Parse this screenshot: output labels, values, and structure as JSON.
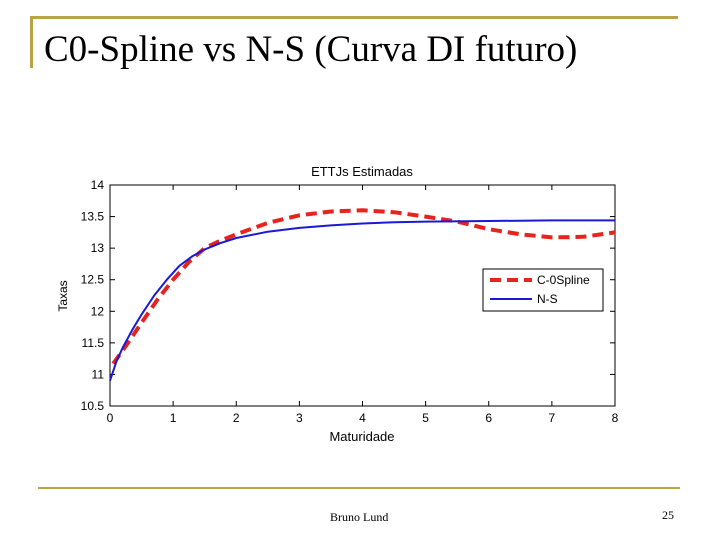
{
  "slide": {
    "title": "C0-Spline vs N-S (Curva DI futuro)",
    "author": "Bruno Lund",
    "page_number": "25",
    "accent_color": "#b8a447"
  },
  "chart_data": {
    "type": "line",
    "title": "ETTJs Estimadas",
    "xlabel": "Maturidade",
    "ylabel": "Taxas",
    "xlim": [
      0,
      8
    ],
    "ylim": [
      10.5,
      14
    ],
    "x_ticks": [
      "0",
      "1",
      "2",
      "3",
      "4",
      "5",
      "6",
      "7",
      "8"
    ],
    "y_ticks": [
      "10.5",
      "11",
      "11.5",
      "12",
      "12.5",
      "13",
      "13.5",
      "14"
    ],
    "grid": false,
    "legend_position": "right",
    "series": [
      {
        "name": "C-0Spline",
        "color": "#e8221c",
        "style": "dashed",
        "points": [
          [
            0.05,
            11.17
          ],
          [
            0.25,
            11.45
          ],
          [
            0.5,
            11.82
          ],
          [
            0.75,
            12.18
          ],
          [
            1.0,
            12.5
          ],
          [
            1.25,
            12.78
          ],
          [
            1.5,
            13.0
          ],
          [
            1.75,
            13.12
          ],
          [
            2.0,
            13.22
          ],
          [
            2.5,
            13.4
          ],
          [
            3.0,
            13.52
          ],
          [
            3.5,
            13.58
          ],
          [
            4.0,
            13.6
          ],
          [
            4.5,
            13.57
          ],
          [
            5.0,
            13.5
          ],
          [
            5.5,
            13.42
          ],
          [
            6.0,
            13.3
          ],
          [
            6.5,
            13.22
          ],
          [
            7.0,
            13.17
          ],
          [
            7.5,
            13.18
          ],
          [
            8.0,
            13.25
          ]
        ]
      },
      {
        "name": "N-S",
        "color": "#1a1ad6",
        "style": "solid",
        "points": [
          [
            0.0,
            10.9
          ],
          [
            0.1,
            11.2
          ],
          [
            0.2,
            11.42
          ],
          [
            0.35,
            11.7
          ],
          [
            0.5,
            11.95
          ],
          [
            0.7,
            12.25
          ],
          [
            0.9,
            12.5
          ],
          [
            1.1,
            12.72
          ],
          [
            1.3,
            12.87
          ],
          [
            1.5,
            12.98
          ],
          [
            1.75,
            13.08
          ],
          [
            2.0,
            13.16
          ],
          [
            2.5,
            13.26
          ],
          [
            3.0,
            13.32
          ],
          [
            3.5,
            13.36
          ],
          [
            4.0,
            13.39
          ],
          [
            4.5,
            13.41
          ],
          [
            5.0,
            13.42
          ],
          [
            6.0,
            13.43
          ],
          [
            7.0,
            13.44
          ],
          [
            8.0,
            13.44
          ]
        ]
      }
    ]
  }
}
